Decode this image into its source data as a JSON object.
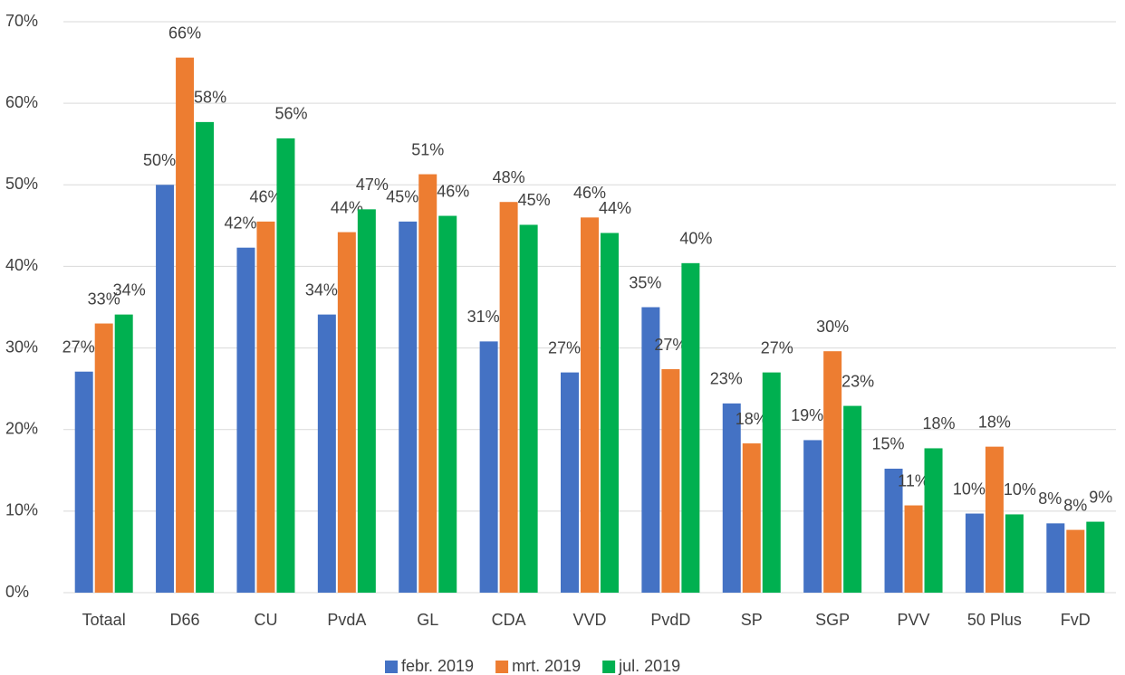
{
  "chart_data": {
    "type": "bar",
    "categories": [
      "Totaal",
      "D66",
      "CU",
      "PvdA",
      "GL",
      "CDA",
      "VVD",
      "PvdD",
      "SP",
      "SGP",
      "PVV",
      "50 Plus",
      "FvD"
    ],
    "series": [
      {
        "name": "febr. 2019",
        "color": "#4472c4",
        "values": [
          27.1,
          50.0,
          42.3,
          34.1,
          45.5,
          30.8,
          27.0,
          35.0,
          23.2,
          18.7,
          15.2,
          9.7,
          8.5
        ],
        "value_labels": [
          "27%",
          "50%",
          "42%",
          "34%",
          "45%",
          "31%",
          "27%",
          "35%",
          "23%",
          "19%",
          "15%",
          "10%",
          "8%"
        ]
      },
      {
        "name": "mrt. 2019",
        "color": "#ed7d31",
        "values": [
          33.0,
          65.6,
          45.5,
          44.2,
          51.3,
          47.9,
          46.0,
          27.4,
          18.3,
          29.6,
          10.7,
          17.9,
          7.7
        ],
        "value_labels": [
          "33%",
          "66%",
          "46%",
          "44%",
          "51%",
          "48%",
          "46%",
          "27%",
          "18%",
          "30%",
          "11%",
          "18%",
          "8%"
        ]
      },
      {
        "name": "jul. 2019",
        "color": "#00b050",
        "values": [
          34.1,
          57.7,
          55.7,
          47.0,
          46.2,
          45.1,
          44.1,
          40.4,
          27.0,
          22.9,
          17.7,
          9.6,
          8.7
        ],
        "value_labels": [
          "34%",
          "58%",
          "56%",
          "47%",
          "46%",
          "45%",
          "44%",
          "40%",
          "27%",
          "23%",
          "18%",
          "10%",
          "9%"
        ]
      }
    ],
    "ylim": [
      0,
      70
    ],
    "yticks": [
      {
        "value": 0,
        "label": "0%"
      },
      {
        "value": 10,
        "label": "10%"
      },
      {
        "value": 20,
        "label": "20%"
      },
      {
        "value": 30,
        "label": "30%"
      },
      {
        "value": 40,
        "label": "40%"
      },
      {
        "value": 50,
        "label": "50%"
      },
      {
        "value": 60,
        "label": "60%"
      },
      {
        "value": 70,
        "label": "70%"
      }
    ],
    "grid": true,
    "legend": "bottom"
  }
}
